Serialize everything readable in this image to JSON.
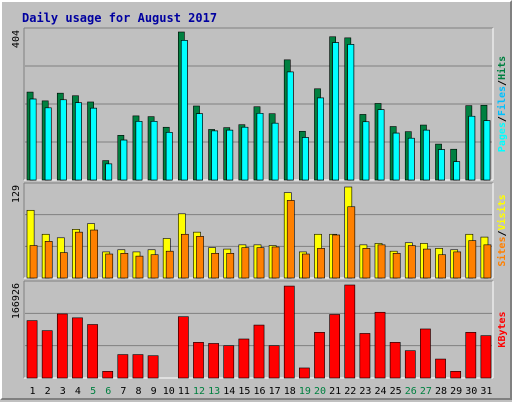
{
  "chart_data": {
    "type": "bar",
    "title": "Daily usage for August 2017",
    "colors": {
      "background": "#c0c0c0",
      "plot_bg": "#c0c0c0",
      "grid": "#808080",
      "title": "#0000a0",
      "hits": "#008040",
      "files": "#00c0ff",
      "pages": "#00ffff",
      "visits": "#ffff00",
      "sites": "#ff8000",
      "kbytes": "#ff0000",
      "axis_text": "#000000",
      "weekend_text": "#008040"
    },
    "categories": [
      "1",
      "2",
      "3",
      "4",
      "5",
      "6",
      "7",
      "8",
      "9",
      "10",
      "11",
      "12",
      "13",
      "14",
      "15",
      "16",
      "17",
      "18",
      "19",
      "20",
      "21",
      "22",
      "23",
      "24",
      "25",
      "26",
      "27",
      "28",
      "29",
      "30",
      "31"
    ],
    "weekend_days": [
      5,
      6,
      12,
      13,
      19,
      20,
      26,
      27
    ],
    "panels": [
      {
        "name": "hits-files-pages",
        "ymax_label": "404",
        "ymax": 404,
        "legend": [
          {
            "text": "Pages",
            "color": "#00ffff"
          },
          {
            "text": "/",
            "color": "#000000"
          },
          {
            "text": "Files",
            "color": "#00c0ff"
          },
          {
            "text": "/",
            "color": "#000000"
          },
          {
            "text": "Hits",
            "color": "#008040"
          }
        ],
        "series": [
          {
            "name": "Hits",
            "color": "#008040",
            "values": [
              240,
              216,
              237,
              230,
              213,
              53,
              122,
              175,
              173,
              144,
              404,
              202,
              138,
              143,
              151,
              200,
              181,
              328,
              133,
              249,
              391,
              388,
              179,
              209,
              146,
              132,
              150,
              98,
              84,
              203,
              204
            ]
          },
          {
            "name": "Files",
            "color": "#00c0ff",
            "values": [
              221,
              197,
              219,
              211,
              196,
              44,
              109,
              160,
              160,
              130,
              381,
              181,
              134,
              136,
              144,
              182,
              155,
              295,
              116,
              224,
              375,
              370,
              159,
              192,
              128,
              114,
              136,
              83,
              50,
              174,
              162
            ]
          },
          {
            "name": "Pages",
            "color": "#00ffff",
            "values": [
              221,
              197,
              219,
              211,
              196,
              44,
              109,
              160,
              160,
              130,
              381,
              181,
              134,
              136,
              144,
              182,
              155,
              295,
              116,
              224,
              375,
              370,
              159,
              192,
              128,
              114,
              136,
              83,
              50,
              174,
              162
            ]
          }
        ]
      },
      {
        "name": "visits-sites",
        "ymax_label": "129",
        "ymax": 129,
        "legend": [
          {
            "text": "Sites",
            "color": "#ff8000"
          },
          {
            "text": "/",
            "color": "#000000"
          },
          {
            "text": "Visits",
            "color": "#ffff00"
          }
        ],
        "series": [
          {
            "name": "Visits",
            "color": "#ffff00",
            "values": [
              96,
              62,
              57,
              69,
              77,
              37,
              40,
              37,
              40,
              56,
              91,
              65,
              43,
              41,
              47,
              47,
              46,
              121,
              37,
              62,
              62,
              129,
              47,
              49,
              38,
              50,
              49,
              42,
              40,
              62,
              58
            ]
          },
          {
            "name": "Sites",
            "color": "#ff8000",
            "values": [
              46,
              52,
              36,
              65,
              68,
              34,
              35,
              31,
              33,
              38,
              62,
              59,
              35,
              35,
              43,
              43,
              44,
              110,
              34,
              42,
              61,
              101,
              42,
              47,
              35,
              46,
              41,
              33,
              37,
              53,
              47
            ]
          }
        ]
      },
      {
        "name": "kbytes",
        "ymax_label": "166926",
        "ymax": 166926,
        "legend": [
          {
            "text": "KBytes",
            "color": "#ff0000"
          }
        ],
        "series": [
          {
            "name": "KBytes",
            "color": "#ff0000",
            "values": [
              103000,
              85000,
              115000,
              108000,
              96000,
              12000,
              42000,
              42000,
              40000,
              0,
              110000,
              64000,
              62000,
              58000,
              70000,
              95000,
              58000,
              165000,
              18000,
              82000,
              114000,
              166926,
              80000,
              118000,
              64000,
              49000,
              88000,
              34000,
              12000,
              82000,
              76000
            ]
          }
        ]
      }
    ]
  }
}
